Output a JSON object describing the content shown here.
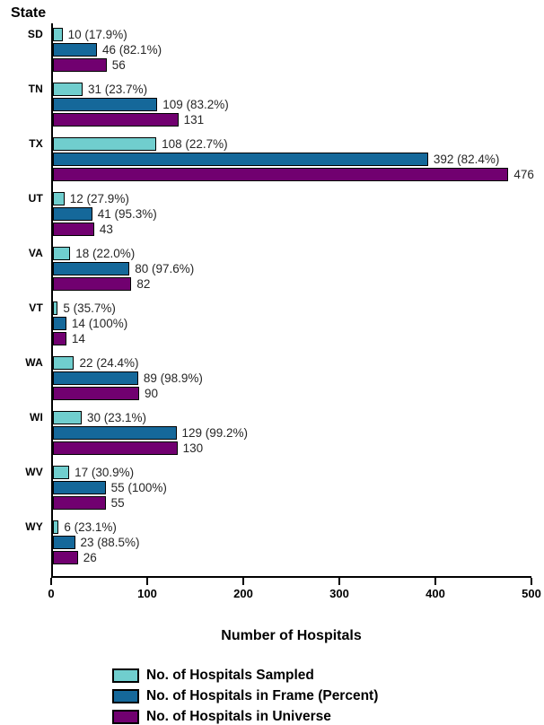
{
  "chart_data": {
    "type": "bar",
    "orientation": "horizontal",
    "y_axis_title": "State",
    "xlabel": "Number of Hospitals",
    "xlim": [
      0,
      500
    ],
    "x_ticks": [
      0,
      100,
      200,
      300,
      400,
      500
    ],
    "grid": false,
    "legend_position": "bottom",
    "series": [
      {
        "key": "sampled",
        "name": "No. of Hospitals Sampled",
        "color": "#70CECE"
      },
      {
        "key": "frame",
        "name": "No. of Hospitals in Frame (Percent)",
        "color": "#15689A"
      },
      {
        "key": "universe",
        "name": "No. of Hospitals in Universe",
        "color": "#710070"
      }
    ],
    "groups": [
      {
        "state": "SD",
        "bars": [
          {
            "value": 10,
            "label": "10 (17.9%)"
          },
          {
            "value": 46,
            "label": "46 (82.1%)"
          },
          {
            "value": 56,
            "label": "56"
          }
        ]
      },
      {
        "state": "TN",
        "bars": [
          {
            "value": 31,
            "label": "31 (23.7%)"
          },
          {
            "value": 109,
            "label": "109 (83.2%)"
          },
          {
            "value": 131,
            "label": "131"
          }
        ]
      },
      {
        "state": "TX",
        "bars": [
          {
            "value": 108,
            "label": "108 (22.7%)"
          },
          {
            "value": 392,
            "label": "392 (82.4%)"
          },
          {
            "value": 476,
            "label": "476"
          }
        ]
      },
      {
        "state": "UT",
        "bars": [
          {
            "value": 12,
            "label": "12 (27.9%)"
          },
          {
            "value": 41,
            "label": "41 (95.3%)"
          },
          {
            "value": 43,
            "label": "43"
          }
        ]
      },
      {
        "state": "VA",
        "bars": [
          {
            "value": 18,
            "label": "18 (22.0%)"
          },
          {
            "value": 80,
            "label": "80 (97.6%)"
          },
          {
            "value": 82,
            "label": "82"
          }
        ]
      },
      {
        "state": "VT",
        "bars": [
          {
            "value": 5,
            "label": "5 (35.7%)"
          },
          {
            "value": 14,
            "label": "14 (100%)"
          },
          {
            "value": 14,
            "label": "14"
          }
        ]
      },
      {
        "state": "WA",
        "bars": [
          {
            "value": 22,
            "label": "22 (24.4%)"
          },
          {
            "value": 89,
            "label": "89 (98.9%)"
          },
          {
            "value": 90,
            "label": "90"
          }
        ]
      },
      {
        "state": "WI",
        "bars": [
          {
            "value": 30,
            "label": "30 (23.1%)"
          },
          {
            "value": 129,
            "label": "129 (99.2%)"
          },
          {
            "value": 130,
            "label": "130"
          }
        ]
      },
      {
        "state": "WV",
        "bars": [
          {
            "value": 17,
            "label": "17 (30.9%)"
          },
          {
            "value": 55,
            "label": "55 (100%)"
          },
          {
            "value": 55,
            "label": "55"
          }
        ]
      },
      {
        "state": "WY",
        "bars": [
          {
            "value": 6,
            "label": "6 (23.1%)"
          },
          {
            "value": 23,
            "label": "23 (88.5%)"
          },
          {
            "value": 26,
            "label": "26"
          }
        ]
      }
    ]
  }
}
